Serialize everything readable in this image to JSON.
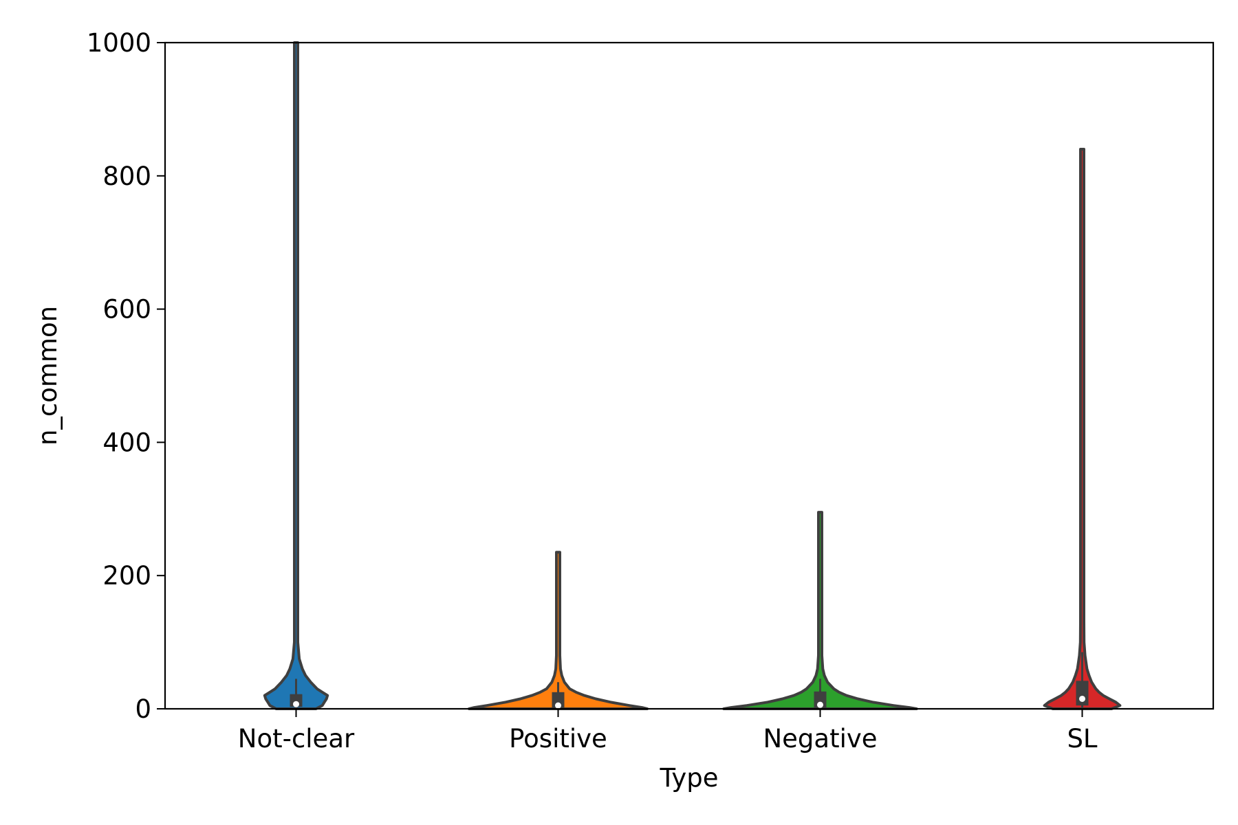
{
  "chart_data": {
    "type": "violin",
    "title": "",
    "xlabel": "Type",
    "ylabel": "n_common",
    "ylim": [
      0,
      1000
    ],
    "yticks": [
      0,
      200,
      400,
      600,
      800,
      1000
    ],
    "yticklabels": [
      "0",
      "200",
      "400",
      "600",
      "800",
      "1000"
    ],
    "categories": [
      "Not-clear",
      "Positive",
      "Negative",
      "SL"
    ],
    "grid": false,
    "legend": "none",
    "series": [
      {
        "category": "Not-clear",
        "color": "#1f77b4",
        "min": 0,
        "max": 1000,
        "q1": 3,
        "median": 7,
        "q3": 22,
        "whisker_low": 0,
        "whisker_high": 45,
        "density": [
          [
            0,
            0.19
          ],
          [
            5,
            0.25
          ],
          [
            10,
            0.27
          ],
          [
            15,
            0.29
          ],
          [
            20,
            0.3
          ],
          [
            25,
            0.25
          ],
          [
            30,
            0.2
          ],
          [
            40,
            0.14
          ],
          [
            50,
            0.09
          ],
          [
            60,
            0.06
          ],
          [
            75,
            0.03
          ],
          [
            100,
            0.015
          ],
          [
            150,
            0.008
          ],
          [
            300,
            0.006
          ],
          [
            600,
            0.006
          ],
          [
            1000,
            0.006
          ]
        ]
      },
      {
        "category": "Positive",
        "color": "#ff7f0e",
        "min": 0,
        "max": 235,
        "q1": 2,
        "median": 5,
        "q3": 25,
        "whisker_low": 0,
        "whisker_high": 40,
        "density": [
          [
            0,
            0.85
          ],
          [
            2,
            0.8
          ],
          [
            5,
            0.68
          ],
          [
            10,
            0.5
          ],
          [
            15,
            0.36
          ],
          [
            20,
            0.25
          ],
          [
            25,
            0.17
          ],
          [
            30,
            0.11
          ],
          [
            40,
            0.06
          ],
          [
            50,
            0.035
          ],
          [
            60,
            0.022
          ],
          [
            80,
            0.014
          ],
          [
            100,
            0.01
          ],
          [
            150,
            0.007
          ],
          [
            235,
            0.006
          ]
        ]
      },
      {
        "category": "Negative",
        "color": "#2ca02c",
        "min": 0,
        "max": 295,
        "q1": 2,
        "median": 6,
        "q3": 26,
        "whisker_low": 0,
        "whisker_high": 45,
        "density": [
          [
            0,
            0.92
          ],
          [
            2,
            0.85
          ],
          [
            5,
            0.7
          ],
          [
            10,
            0.5
          ],
          [
            15,
            0.36
          ],
          [
            20,
            0.25
          ],
          [
            25,
            0.18
          ],
          [
            30,
            0.13
          ],
          [
            40,
            0.07
          ],
          [
            50,
            0.04
          ],
          [
            60,
            0.025
          ],
          [
            80,
            0.015
          ],
          [
            100,
            0.01
          ],
          [
            150,
            0.007
          ],
          [
            295,
            0.006
          ]
        ]
      },
      {
        "category": "SL",
        "color": "#d62728",
        "min": 0,
        "max": 840,
        "q1": 5,
        "median": 15,
        "q3": 42,
        "whisker_low": 0,
        "whisker_high": 85,
        "density": [
          [
            0,
            0.28
          ],
          [
            5,
            0.36
          ],
          [
            10,
            0.32
          ],
          [
            15,
            0.26
          ],
          [
            20,
            0.2
          ],
          [
            25,
            0.16
          ],
          [
            30,
            0.13
          ],
          [
            40,
            0.09
          ],
          [
            50,
            0.065
          ],
          [
            60,
            0.045
          ],
          [
            80,
            0.027
          ],
          [
            100,
            0.018
          ],
          [
            130,
            0.012
          ],
          [
            200,
            0.008
          ],
          [
            400,
            0.006
          ],
          [
            840,
            0.006
          ]
        ]
      }
    ]
  }
}
